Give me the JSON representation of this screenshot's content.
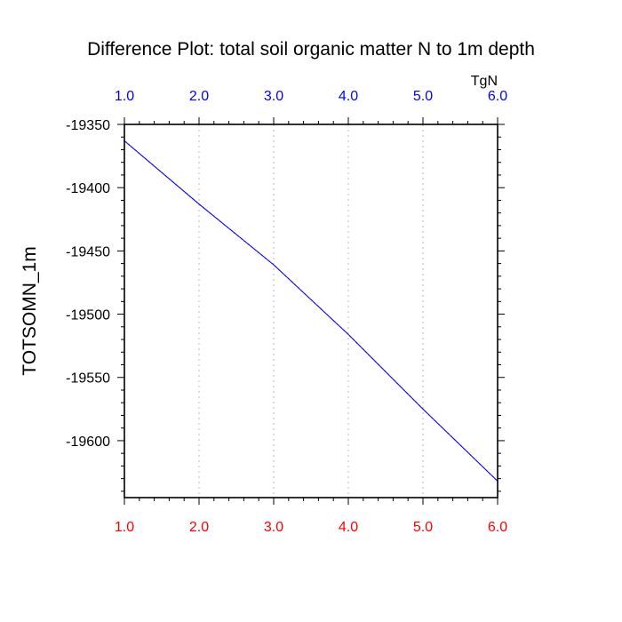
{
  "chart_data": {
    "type": "line",
    "title": "Difference Plot: total soil organic matter N to 1m depth",
    "ylabel": "TOTSOMN_1m",
    "top_axis_units": "TgN",
    "xlim": [
      1.0,
      6.0
    ],
    "ylim": [
      -19645,
      -19350
    ],
    "x_ticks": [
      1.0,
      2.0,
      3.0,
      4.0,
      5.0,
      6.0
    ],
    "x_tick_labels": [
      "1.0",
      "2.0",
      "3.0",
      "4.0",
      "5.0",
      "6.0"
    ],
    "y_ticks": [
      -19350,
      -19400,
      -19450,
      -19500,
      -19550,
      -19600
    ],
    "y_tick_labels": [
      "-19350",
      "-19400",
      "-19450",
      "-19500",
      "-19550",
      "-19600"
    ],
    "grid": "vertical-dotted",
    "series": [
      {
        "color": "#8000ff",
        "dash": "3,2",
        "x": [
          1.0,
          2.0,
          3.0,
          4.0,
          5.0,
          6.0
        ],
        "y": [
          -19363,
          -19413,
          -19461,
          -19516,
          -19575,
          -19632
        ]
      },
      {
        "color": "#0000ff",
        "dash": "",
        "x": [
          1.0,
          2.0,
          3.0,
          4.0,
          5.0,
          6.0
        ],
        "y": [
          -19363,
          -19413,
          -19461,
          -19516,
          -19575,
          -19632
        ]
      }
    ],
    "colors": {
      "top_ticks": "#0000ff",
      "bottom_ticks": "#ff0000",
      "axis_text": "#000000"
    }
  }
}
